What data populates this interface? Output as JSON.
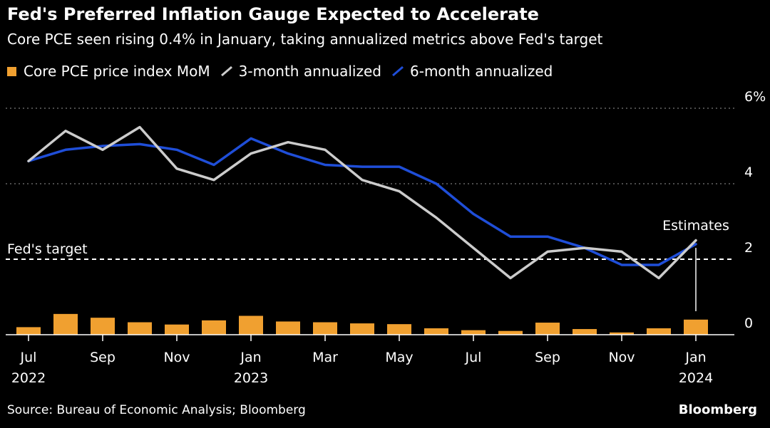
{
  "header": {
    "title": "Fed's Preferred Inflation Gauge Expected to Accelerate",
    "subtitle": "Core PCE seen rising 0.4% in January, taking annualized metrics above Fed's target"
  },
  "footer": {
    "source": "Source: Bureau of Economic Analysis; Bloomberg",
    "brand": "Bloomberg"
  },
  "colors": {
    "bar": "#f0a030",
    "line_3m": "#cccccc",
    "line_6m": "#1f4ed8",
    "grid": "#7a7a7a",
    "target": "#ffffff",
    "background": "#000000"
  },
  "chart_data": {
    "type": "bar+line",
    "categories": [
      "2022-07",
      "2022-08",
      "2022-09",
      "2022-10",
      "2022-11",
      "2022-12",
      "2023-01",
      "2023-02",
      "2023-03",
      "2023-04",
      "2023-05",
      "2023-06",
      "2023-07",
      "2023-08",
      "2023-09",
      "2023-10",
      "2023-11",
      "2023-12",
      "2024-01"
    ],
    "series": [
      {
        "name": "Core PCE price index MoM",
        "kind": "bar",
        "values": [
          0.2,
          0.55,
          0.45,
          0.33,
          0.27,
          0.38,
          0.5,
          0.35,
          0.33,
          0.3,
          0.28,
          0.17,
          0.12,
          0.1,
          0.32,
          0.15,
          0.06,
          0.17,
          0.4
        ]
      },
      {
        "name": "3-month annualized",
        "kind": "line",
        "values": [
          4.6,
          5.4,
          4.9,
          5.5,
          4.4,
          4.1,
          4.8,
          5.1,
          4.9,
          4.1,
          3.8,
          3.1,
          2.3,
          1.5,
          2.2,
          2.3,
          2.2,
          1.5,
          2.5
        ]
      },
      {
        "name": "6-month annualized",
        "kind": "line",
        "values": [
          4.6,
          4.9,
          5.0,
          5.05,
          4.9,
          4.5,
          5.2,
          4.8,
          4.5,
          4.45,
          4.45,
          4.0,
          3.2,
          2.6,
          2.6,
          2.3,
          1.85,
          1.85,
          2.4
        ]
      }
    ],
    "y_ticks": [
      {
        "value": 0,
        "label": "0"
      },
      {
        "value": 2,
        "label": "2"
      },
      {
        "value": 4,
        "label": "4"
      },
      {
        "value": 6,
        "label": "6%"
      }
    ],
    "ylim": [
      0,
      6
    ],
    "x_ticks": [
      {
        "index": 0,
        "label": "Jul",
        "year": "2022"
      },
      {
        "index": 2,
        "label": "Sep",
        "year": ""
      },
      {
        "index": 4,
        "label": "Nov",
        "year": ""
      },
      {
        "index": 6,
        "label": "Jan",
        "year": "2023"
      },
      {
        "index": 8,
        "label": "Mar",
        "year": ""
      },
      {
        "index": 10,
        "label": "May",
        "year": ""
      },
      {
        "index": 12,
        "label": "Jul",
        "year": ""
      },
      {
        "index": 14,
        "label": "Sep",
        "year": ""
      },
      {
        "index": 16,
        "label": "Nov",
        "year": ""
      },
      {
        "index": 18,
        "label": "Jan",
        "year": "2024"
      }
    ],
    "target": {
      "value": 2,
      "label": "Fed's target"
    },
    "annotation": {
      "label": "Estimates",
      "index": 18
    },
    "grid": true,
    "legend_position": "top-left"
  }
}
